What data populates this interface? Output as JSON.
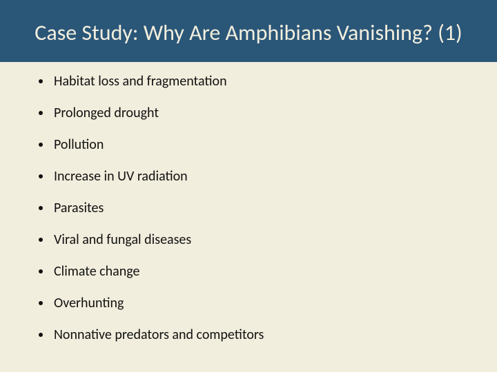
{
  "slide": {
    "title": "Case Study: Why Are Amphibians Vanishing? (1)",
    "title_fontsize": 32,
    "title_band_color": "#2a5678",
    "title_text_color": "#f2eedd",
    "body_bg_color": "#f2eedd",
    "body_text_color": "#111111",
    "bullet_color": "#111111",
    "bullets": [
      "Habitat loss and fragmentation",
      "Prolonged drought",
      "Pollution",
      "Increase in UV radiation",
      "Parasites",
      "Viral and fungal diseases",
      "Climate change",
      "Overhunting",
      "Nonnative predators and competitors"
    ]
  }
}
